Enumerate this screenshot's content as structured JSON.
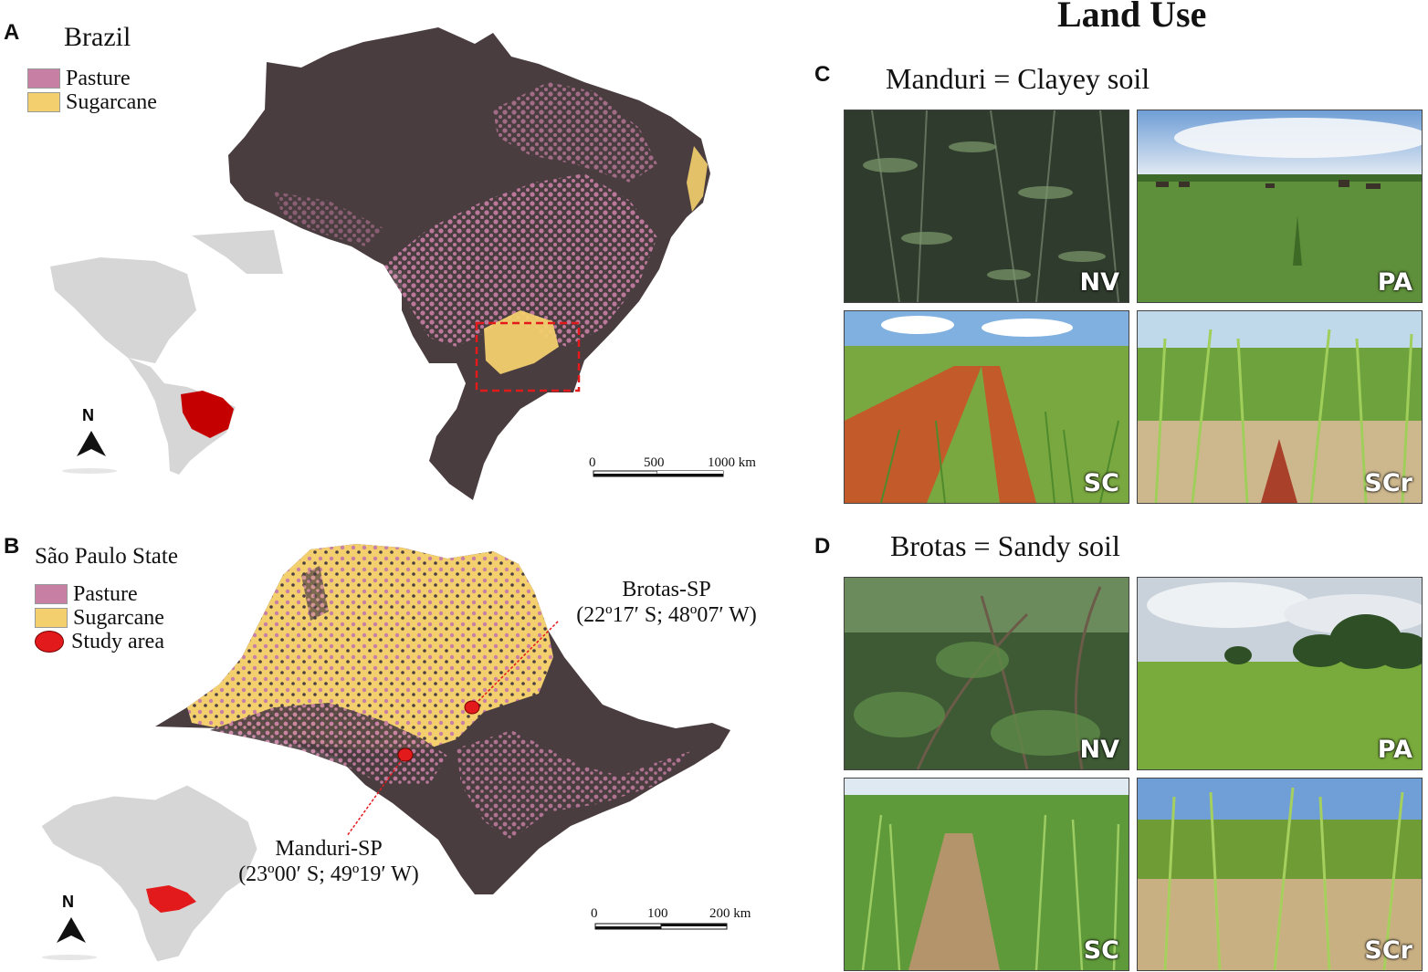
{
  "figure_title": "Land Use",
  "panel_a": {
    "letter": "A",
    "title": "Brazil",
    "legend": [
      {
        "label": "Pasture",
        "color": "#c87fa4"
      },
      {
        "label": "Sugarcane",
        "color": "#f3cf6e"
      }
    ],
    "north_label": "N",
    "scale": {
      "ticks": [
        "0",
        "500",
        "1000 km"
      ]
    }
  },
  "panel_b": {
    "letter": "B",
    "title": "São Paulo State",
    "legend": [
      {
        "label": "Pasture",
        "color": "#c87fa4"
      },
      {
        "label": "Sugarcane",
        "color": "#f3cf6e"
      },
      {
        "label": "Study area",
        "color": "#e31a1c"
      }
    ],
    "north_label": "N",
    "scale": {
      "ticks": [
        "0",
        "100",
        "200 km"
      ]
    },
    "sites": [
      {
        "name": "Brotas-SP",
        "coords": "(22º17′ S; 48º07′ W)"
      },
      {
        "name": "Manduri-SP",
        "coords": "(23º00′ S; 49º19′ W)"
      }
    ]
  },
  "panel_c": {
    "letter": "C",
    "title": "Manduri = Clayey soil",
    "photos": [
      "NV",
      "PA",
      "SC",
      "SCr"
    ]
  },
  "panel_d": {
    "letter": "D",
    "title": "Brotas = Sandy soil",
    "photos": [
      "NV",
      "PA",
      "SC",
      "SCr"
    ]
  },
  "colors": {
    "land": "#4a3d40",
    "pasture": "#c87fa4",
    "sugarcane": "#f3cf6e",
    "inset_gray": "#d6d6d6",
    "highlight_red": "#c40000"
  }
}
